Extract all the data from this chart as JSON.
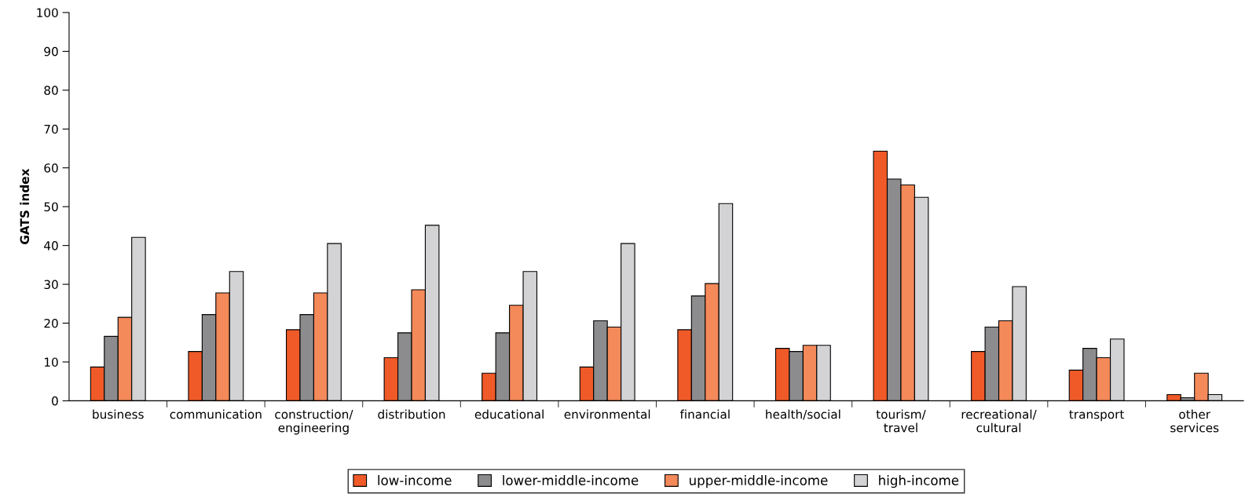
{
  "chart_data": {
    "type": "bar",
    "ylabel": "GATS index",
    "categories": [
      "business",
      "communication",
      "construction/\nengineering",
      "distribution",
      "educational",
      "environmental",
      "financial",
      "health/social",
      "tourism/\ntravel",
      "recreational/\ncultural",
      "transport",
      "other\nservices"
    ],
    "series": [
      {
        "name": "low-income",
        "color": "#f05a28",
        "values": [
          8.7,
          12.7,
          18.3,
          11.1,
          7.1,
          8.7,
          18.3,
          13.5,
          64.3,
          12.7,
          7.9,
          1.6
        ]
      },
      {
        "name": "lower-middle-income",
        "color": "#8c8c8e",
        "values": [
          16.6,
          22.2,
          22.2,
          17.5,
          17.5,
          20.6,
          27.0,
          12.7,
          57.1,
          19.0,
          13.5,
          0.8
        ]
      },
      {
        "name": "upper-middle-income",
        "color": "#f4895a",
        "values": [
          21.5,
          27.8,
          27.8,
          28.6,
          24.6,
          19.0,
          30.2,
          14.3,
          55.6,
          20.6,
          11.1,
          7.1
        ]
      },
      {
        "name": "high-income",
        "color": "#d3d3d5",
        "values": [
          42.1,
          33.3,
          40.5,
          45.2,
          33.3,
          40.5,
          50.8,
          14.3,
          52.4,
          29.4,
          15.9,
          1.6
        ]
      }
    ],
    "ylim": [
      0,
      100
    ],
    "yticks": [
      0,
      10,
      20,
      30,
      40,
      50,
      60,
      70,
      80,
      90,
      100
    ],
    "grid": false,
    "legend": "bottom"
  }
}
